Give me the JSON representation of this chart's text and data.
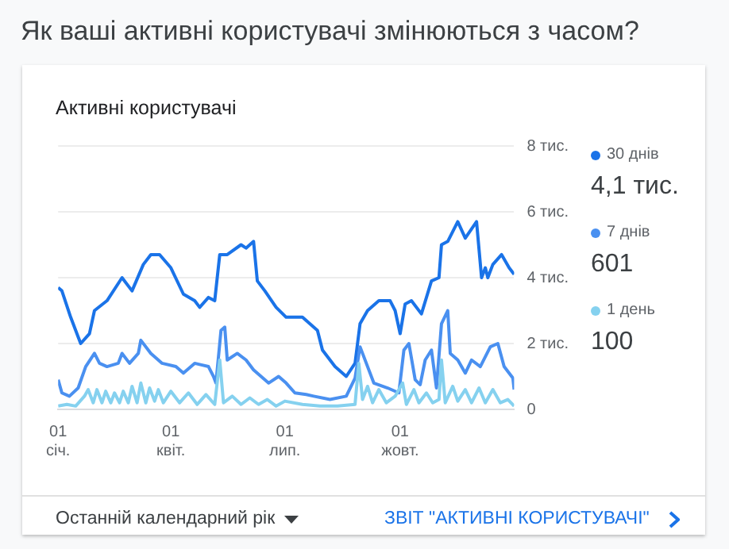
{
  "chart_data": {
    "type": "line",
    "title": "Як ваші активні користувачі змінюються з часом?",
    "subtitle": "Активні користувачі",
    "xlim": [
      "--01-01",
      "--12-31"
    ],
    "xticks": [
      {
        "value": "--01-01",
        "label": "01\nсіч."
      },
      {
        "value": "--04-01",
        "label": "01\nквіт."
      },
      {
        "value": "--07-01",
        "label": "01\nлип."
      },
      {
        "value": "--10-01",
        "label": "01\nжовт."
      }
    ],
    "ylim": [
      0,
      8
    ],
    "yticks": [
      0,
      {
        "value": 2,
        "label": "2 тис."
      },
      {
        "value": 4,
        "label": "4 тис."
      },
      {
        "value": 6,
        "label": "6 тис."
      },
      {
        "value": 8,
        "label": "8 тис."
      }
    ],
    "grid": "y",
    "legend": "right",
    "marker": "none",
    "line_style": "solid",
    "series": [
      {
        "name": "30 днів",
        "color": "#1a73e8",
        "x": [
          "--01-01",
          "--01-04",
          "--01-11",
          "--01-17",
          "--01-19",
          "--01-26",
          "--01-30",
          "--02-09",
          "--02-21",
          "--03-01",
          "--03-10",
          "--03-16",
          "--03-23",
          "--04-01",
          "--04-11",
          "--04-20",
          "--04-24",
          "--05-01",
          "--05-06",
          "--05-10",
          "--05-16",
          "--05-27",
          "--05-31",
          "--06-06",
          "--06-09",
          "--06-15",
          "--06-24",
          "--07-02",
          "--07-15",
          "--07-27",
          "--07-31",
          "--08-10",
          "--08-19",
          "--08-26",
          "--08-30",
          "--09-05",
          "--09-14",
          "--09-23",
          "--09-27",
          "--10-01",
          "--10-05",
          "--10-10",
          "--10-18",
          "--10-26",
          "--11-01",
          "--11-03",
          "--11-08",
          "--11-16",
          "--11-22",
          "--12-01",
          "--12-05",
          "--12-08",
          "--12-10",
          "--12-14",
          "--12-21",
          "--12-27",
          "--12-31"
        ],
        "values": [
          3.7,
          3.6,
          2.8,
          2.2,
          2.0,
          2.3,
          3.0,
          3.3,
          4.0,
          3.6,
          4.4,
          4.7,
          4.7,
          4.3,
          3.5,
          3.3,
          3.1,
          3.4,
          3.3,
          4.7,
          4.7,
          5.0,
          4.9,
          5.1,
          3.9,
          3.6,
          3.1,
          2.8,
          2.8,
          2.4,
          1.8,
          1.3,
          1.0,
          1.4,
          2.6,
          3.0,
          3.3,
          3.3,
          3.0,
          2.3,
          3.2,
          3.3,
          2.9,
          3.9,
          4.0,
          5.0,
          5.1,
          5.7,
          5.2,
          5.7,
          4.0,
          4.3,
          4.0,
          4.4,
          4.7,
          4.3,
          4.1
        ]
      },
      {
        "name": "7 днів",
        "color": "#4a90f0",
        "x": [
          "--01-01",
          "--01-04",
          "--01-10",
          "--01-17",
          "--01-23",
          "--01-30",
          "--02-03",
          "--02-09",
          "--02-18",
          "--02-21",
          "--02-27",
          "--03-06",
          "--03-08",
          "--03-16",
          "--03-25",
          "--04-05",
          "--04-11",
          "--04-20",
          "--05-01",
          "--05-05",
          "--05-07",
          "--05-11",
          "--05-14",
          "--05-16",
          "--05-24",
          "--05-31",
          "--06-06",
          "--06-18",
          "--06-26",
          "--07-02",
          "--07-09",
          "--07-18",
          "--07-24",
          "--08-06",
          "--08-19",
          "--08-26",
          "--08-30",
          "--09-04",
          "--09-10",
          "--09-21",
          "--09-30",
          "--10-04",
          "--10-08",
          "--10-13",
          "--10-17",
          "--10-21",
          "--10-26",
          "--10-30",
          "--11-03",
          "--11-08",
          "--11-10",
          "--11-16",
          "--11-22",
          "--11-27",
          "--12-04",
          "--12-12",
          "--12-18",
          "--12-23",
          "--12-30",
          "--12-31"
        ],
        "values": [
          0.9,
          0.5,
          0.4,
          0.65,
          1.3,
          1.7,
          1.4,
          1.3,
          1.4,
          1.7,
          1.4,
          1.7,
          2.1,
          1.7,
          1.4,
          1.3,
          1.1,
          1.4,
          1.3,
          1.0,
          0.8,
          2.4,
          2.5,
          1.5,
          1.7,
          1.5,
          1.2,
          0.8,
          1.0,
          0.8,
          0.5,
          0.45,
          0.4,
          0.3,
          0.4,
          0.95,
          1.9,
          1.4,
          0.8,
          0.65,
          0.5,
          1.8,
          2.0,
          0.9,
          0.75,
          1.5,
          1.8,
          0.65,
          2.6,
          3.0,
          1.7,
          1.5,
          1.1,
          1.5,
          1.3,
          1.9,
          2.0,
          1.3,
          0.95,
          0.6
        ]
      },
      {
        "name": "1 день",
        "color": "#85d1ef",
        "x": [
          "--01-01",
          "--01-08",
          "--01-15",
          "--01-22",
          "--01-25",
          "--01-29",
          "--02-01",
          "--02-05",
          "--02-08",
          "--02-12",
          "--02-15",
          "--02-19",
          "--02-22",
          "--02-26",
          "--03-01",
          "--03-05",
          "--03-08",
          "--03-12",
          "--03-15",
          "--03-19",
          "--03-22",
          "--03-26",
          "--04-01",
          "--04-08",
          "--04-15",
          "--04-22",
          "--04-29",
          "--05-06",
          "--05-10",
          "--05-13",
          "--05-20",
          "--05-27",
          "--06-03",
          "--06-10",
          "--06-17",
          "--06-24",
          "--07-01",
          "--07-15",
          "--07-29",
          "--08-12",
          "--08-26",
          "--08-29",
          "--09-01",
          "--09-05",
          "--09-09",
          "--09-14",
          "--09-20",
          "--09-27",
          "--10-03",
          "--10-06",
          "--10-12",
          "--10-16",
          "--10-22",
          "--10-27",
          "--11-01",
          "--11-03",
          "--11-06",
          "--11-12",
          "--11-16",
          "--11-22",
          "--11-27",
          "--12-03",
          "--12-08",
          "--12-14",
          "--12-20",
          "--12-26",
          "--12-31"
        ],
        "values": [
          0.1,
          0.15,
          0.1,
          0.4,
          0.6,
          0.2,
          0.6,
          0.2,
          0.55,
          0.2,
          0.5,
          0.2,
          0.55,
          0.2,
          0.7,
          0.2,
          0.8,
          0.2,
          0.65,
          0.25,
          0.6,
          0.2,
          0.55,
          0.2,
          0.5,
          0.15,
          0.45,
          0.15,
          1.5,
          0.2,
          0.4,
          0.15,
          0.35,
          0.15,
          0.3,
          0.1,
          0.25,
          0.15,
          0.1,
          0.1,
          0.15,
          1.4,
          0.3,
          0.7,
          0.2,
          0.6,
          0.2,
          0.4,
          0.8,
          0.15,
          0.6,
          0.2,
          0.5,
          0.2,
          0.3,
          1.5,
          0.2,
          0.7,
          0.25,
          0.6,
          0.2,
          0.65,
          0.2,
          0.6,
          0.2,
          0.3,
          0.1
        ]
      }
    ],
    "annotations": [
      "4,1 тис.",
      "601",
      "100",
      "Останній календарний рік",
      "ЗВІТ \"АКТИВНІ КОРИСТУВАЧІ\""
    ]
  }
}
